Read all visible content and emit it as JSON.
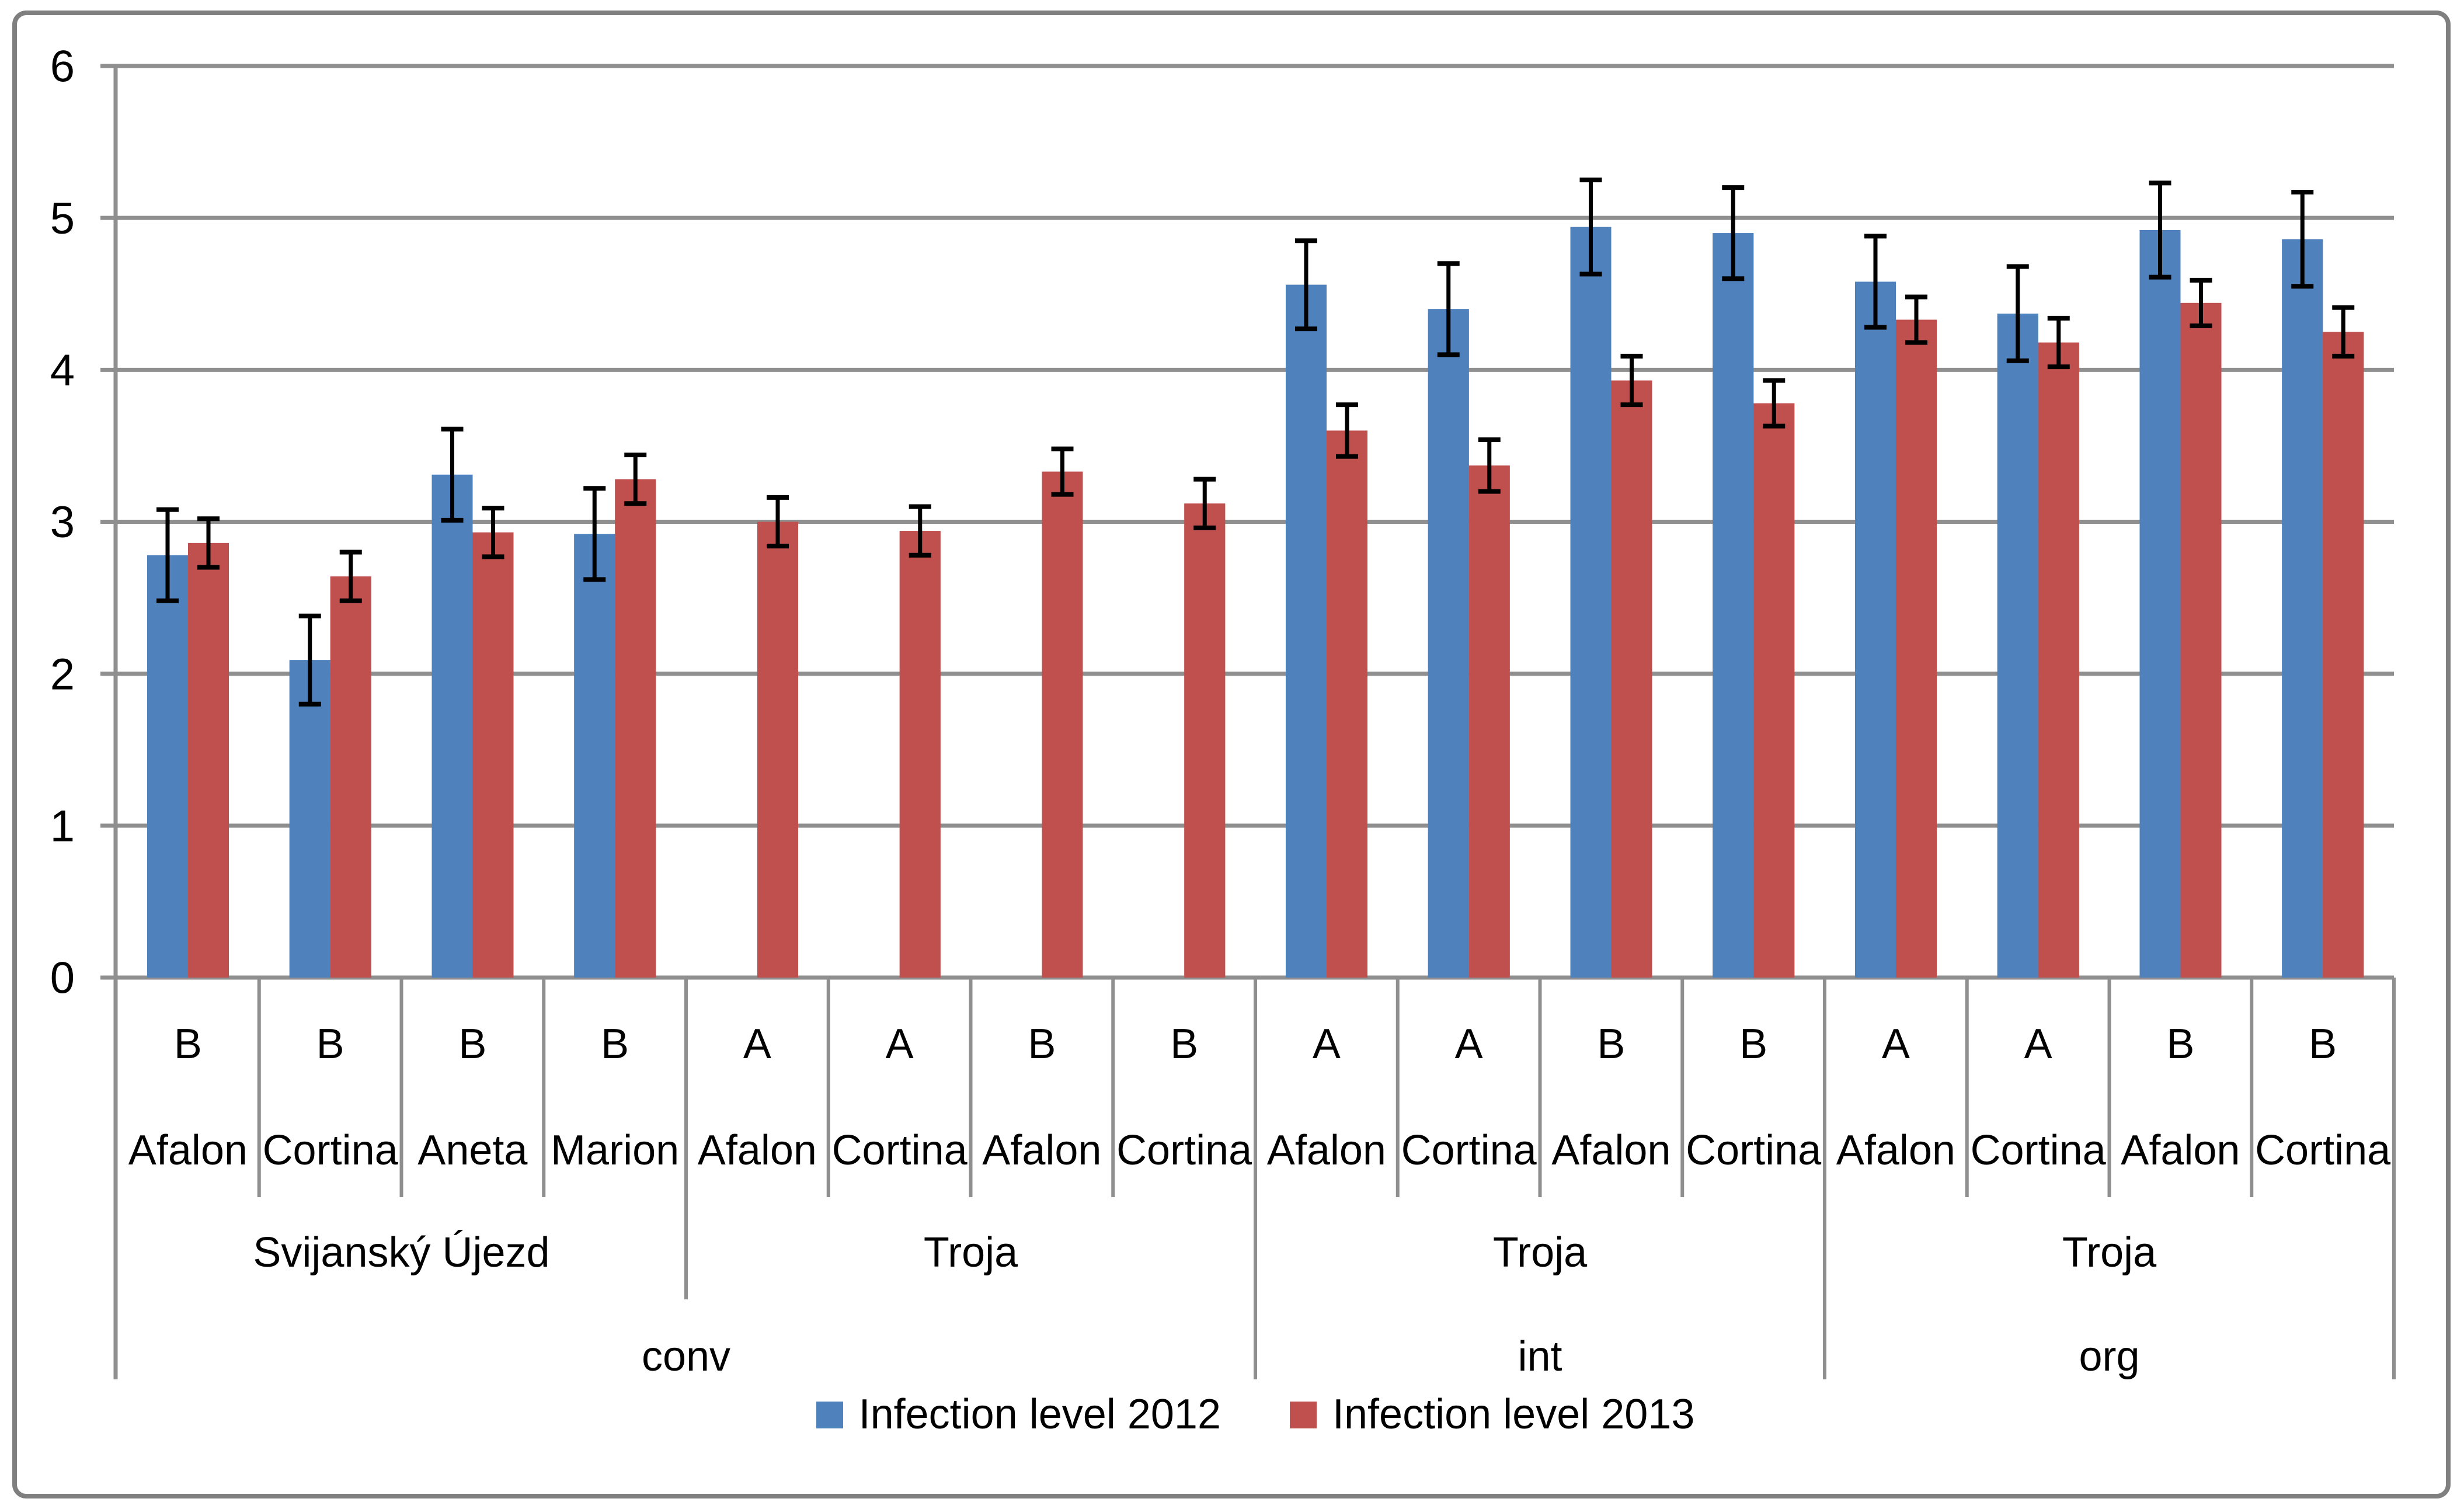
{
  "chart_data": {
    "type": "bar",
    "title": "",
    "xlabel": "",
    "ylabel": "",
    "ylim": [
      0,
      6
    ],
    "yticks": [
      0,
      1,
      2,
      3,
      4,
      5,
      6
    ],
    "grid": true,
    "legend_position": "bottom",
    "n_groups": 16,
    "series": [
      {
        "name": "Infection level 2012",
        "color": "#4F81BD",
        "values": [
          2.78,
          2.09,
          3.31,
          2.92,
          null,
          null,
          null,
          null,
          4.56,
          4.4,
          4.94,
          4.9,
          4.58,
          4.37,
          4.92,
          4.86
        ],
        "errors": [
          0.3,
          0.29,
          0.3,
          0.3,
          null,
          null,
          null,
          null,
          0.29,
          0.3,
          0.31,
          0.3,
          0.3,
          0.31,
          0.31,
          0.31
        ]
      },
      {
        "name": "Infection level 2013",
        "color": "#C0504D",
        "values": [
          2.86,
          2.64,
          2.93,
          3.28,
          3.0,
          2.94,
          3.33,
          3.12,
          3.6,
          3.37,
          3.93,
          3.78,
          4.33,
          4.18,
          4.44,
          4.25
        ],
        "errors": [
          0.16,
          0.16,
          0.16,
          0.16,
          0.16,
          0.16,
          0.15,
          0.16,
          0.17,
          0.17,
          0.16,
          0.15,
          0.15,
          0.16,
          0.15,
          0.16
        ]
      }
    ],
    "categories": {
      "letters": [
        "B",
        "B",
        "B",
        "B",
        "A",
        "A",
        "B",
        "B",
        "A",
        "A",
        "B",
        "B",
        "A",
        "A",
        "B",
        "B"
      ],
      "varieties": [
        "Afalon",
        "Cortina",
        "Aneta",
        "Marion",
        "Afalon",
        "Cortina",
        "Afalon",
        "Cortina",
        "Afalon",
        "Cortina",
        "Afalon",
        "Cortina",
        "Afalon",
        "Cortina",
        "Afalon",
        "Cortina"
      ],
      "locations": [
        {
          "label": "Svijanský Újezd",
          "span": 4
        },
        {
          "label": "Troja",
          "span": 4
        },
        {
          "label": "Troja",
          "span": 4
        },
        {
          "label": "Troja",
          "span": 4
        }
      ],
      "treatments": [
        {
          "label": "conv",
          "span": 8
        },
        {
          "label": "int",
          "span": 4
        },
        {
          "label": "org",
          "span": 4
        }
      ]
    }
  },
  "legend": {
    "items": [
      {
        "label": "Infection level 2012",
        "color": "#4F81BD"
      },
      {
        "label": "Infection level 2013",
        "color": "#C0504D"
      }
    ]
  },
  "style": {
    "gridline_color": "#8F8F8F",
    "axis_color": "#8F8F8F",
    "border_color": "#7F7F7F",
    "error_bar_color": "#000000",
    "text_color": "#000000"
  }
}
